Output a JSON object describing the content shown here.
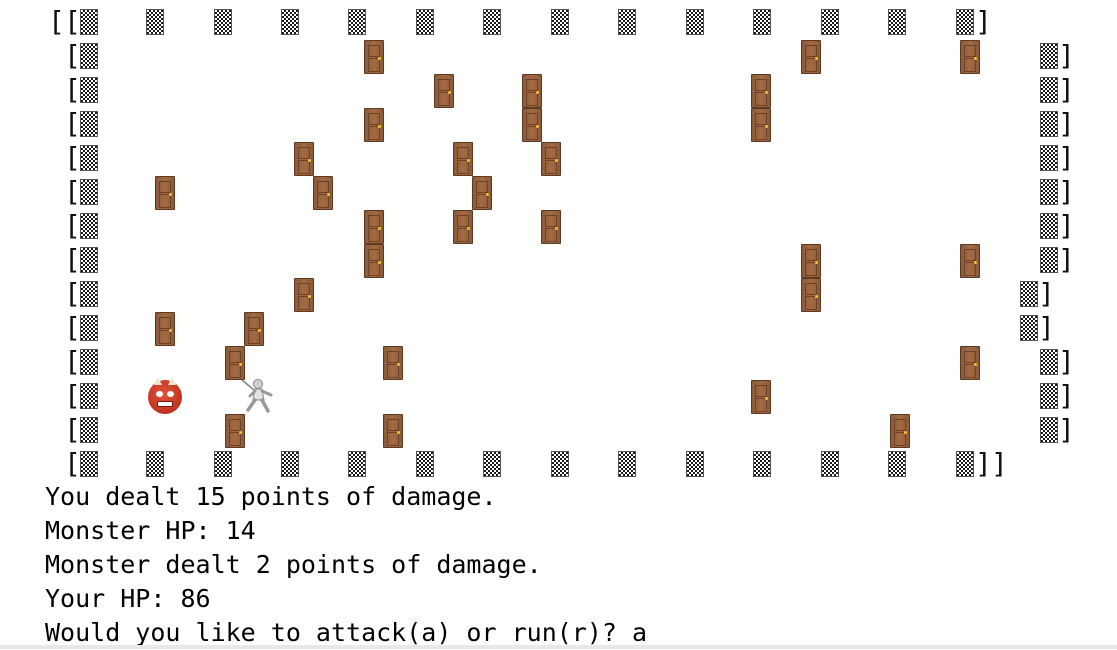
{
  "map": {
    "bracket_open": "[",
    "bracket_close": "]",
    "wall_glyph": "▩",
    "door_glyph": "door",
    "monster_glyph": "ogre",
    "player_glyph": "fencer"
  },
  "colors": {
    "door": "#a36a43",
    "door_knob": "#f2c230",
    "monster": "#c0331f",
    "wall": "#1a1a1a",
    "background": "#ffffff",
    "text": "#000000"
  },
  "messages": [
    "You dealt 15 points of damage.",
    "Monster HP: 14",
    "Monster dealt 2 points of damage.",
    "Your HP: 86",
    "Would you like to attack(a) or run(r)? a"
  ]
}
